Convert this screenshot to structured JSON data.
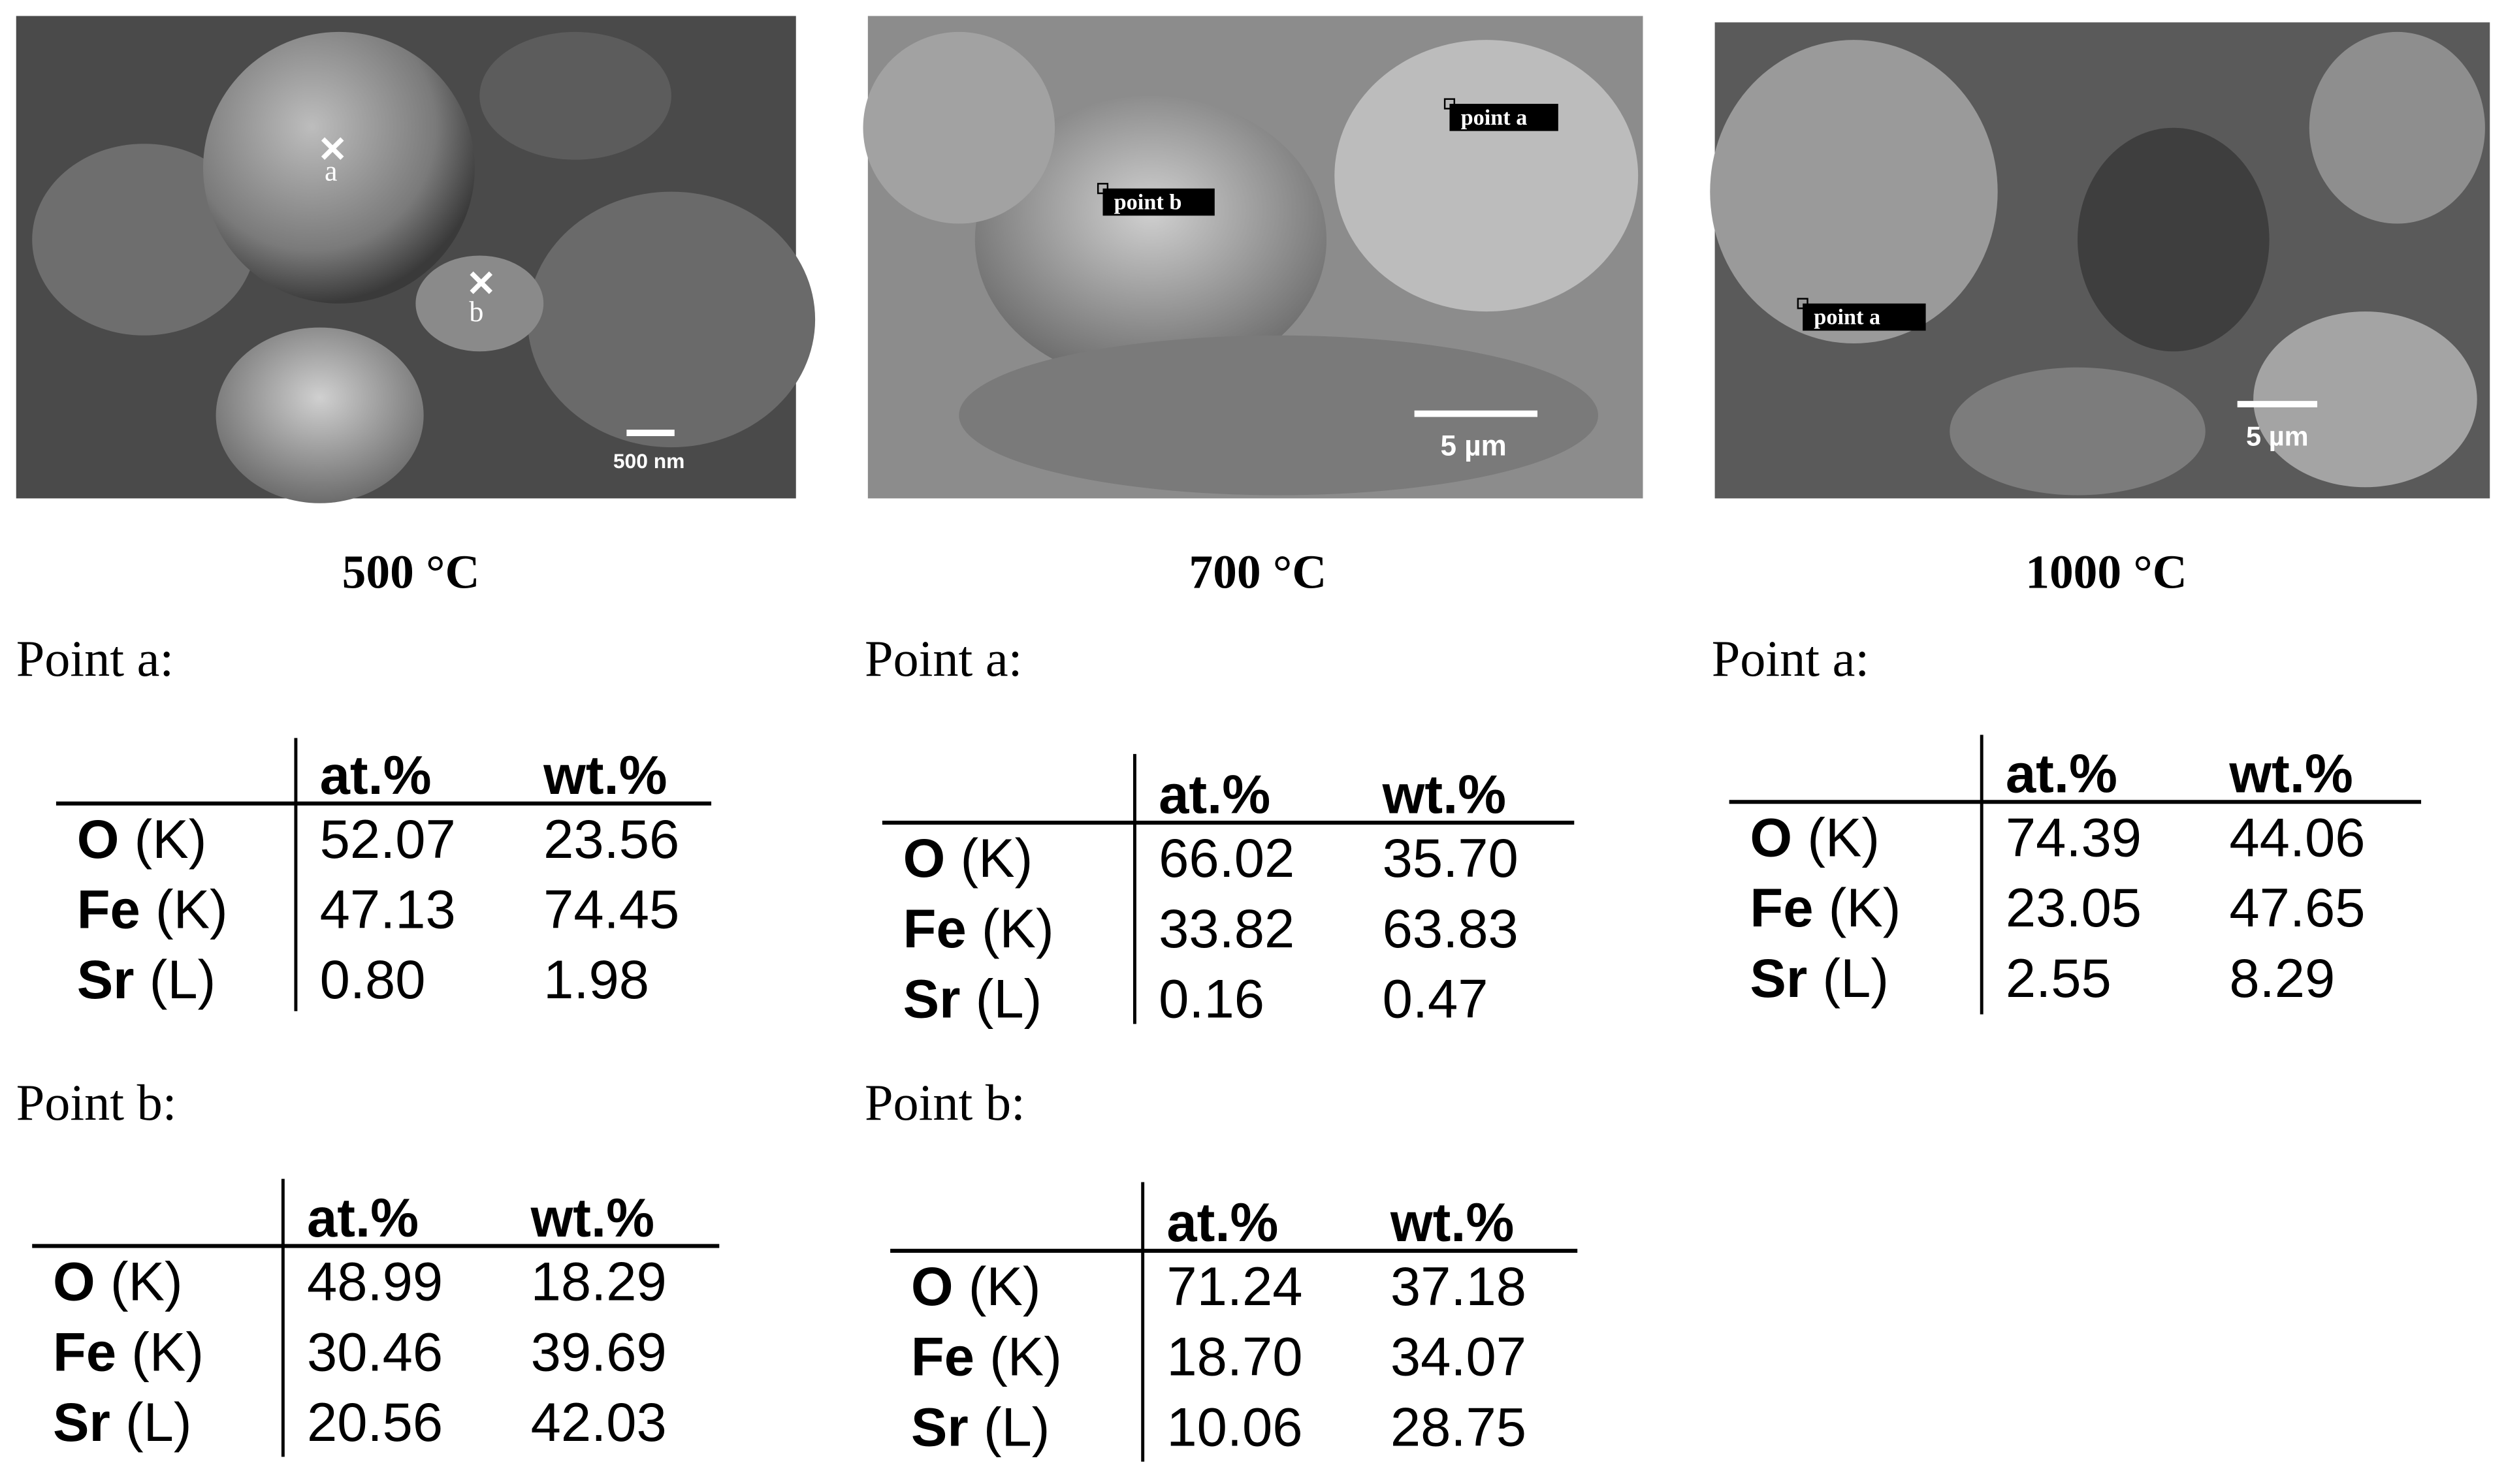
{
  "panels": [
    {
      "temperature": "500 °C",
      "image": {
        "scale_bar": "500 nm",
        "markers": [
          "a",
          "b"
        ]
      },
      "points": [
        {
          "label": "Point a:",
          "table": {
            "columns": [
              "at.%",
              "wt.%"
            ],
            "rows": [
              {
                "element": "O",
                "line": "(K)",
                "values": [
                  "52.07",
                  "23.56"
                ]
              },
              {
                "element": "Fe",
                "line": "(K)",
                "values": [
                  "47.13",
                  "74.45"
                ]
              },
              {
                "element": "Sr",
                "line": "(L)",
                "values": [
                  "0.80",
                  "1.98"
                ]
              }
            ]
          }
        },
        {
          "label": "Point b:",
          "table": {
            "columns": [
              "at.%",
              "wt.%"
            ],
            "rows": [
              {
                "element": "O",
                "line": "(K)",
                "values": [
                  "48.99",
                  "18.29"
                ]
              },
              {
                "element": "Fe",
                "line": "(K)",
                "values": [
                  "30.46",
                  "39.69"
                ]
              },
              {
                "element": "Sr",
                "line": "(L)",
                "values": [
                  "20.56",
                  "42.03"
                ]
              }
            ]
          }
        }
      ]
    },
    {
      "temperature": "700 °C",
      "image": {
        "scale_bar": "5 µm",
        "markers": [
          "point a",
          "point b"
        ]
      },
      "points": [
        {
          "label": "Point a:",
          "table": {
            "columns": [
              "at.%",
              "wt.%"
            ],
            "rows": [
              {
                "element": "O",
                "line": "(K)",
                "values": [
                  "66.02",
                  "35.70"
                ]
              },
              {
                "element": "Fe",
                "line": "(K)",
                "values": [
                  "33.82",
                  "63.83"
                ]
              },
              {
                "element": "Sr",
                "line": "(L)",
                "values": [
                  "0.16",
                  "0.47"
                ]
              }
            ]
          }
        },
        {
          "label": "Point b:",
          "table": {
            "columns": [
              "at.%",
              "wt.%"
            ],
            "rows": [
              {
                "element": "O",
                "line": "(K)",
                "values": [
                  "71.24",
                  "37.18"
                ]
              },
              {
                "element": "Fe",
                "line": "(K)",
                "values": [
                  "18.70",
                  "34.07"
                ]
              },
              {
                "element": "Sr",
                "line": "(L)",
                "values": [
                  "10.06",
                  "28.75"
                ]
              }
            ]
          }
        }
      ]
    },
    {
      "temperature": "1000 °C",
      "image": {
        "scale_bar": "5 µm",
        "markers": [
          "point a"
        ]
      },
      "points": [
        {
          "label": "Point a:",
          "table": {
            "columns": [
              "at.%",
              "wt.%"
            ],
            "rows": [
              {
                "element": "O",
                "line": "(K)",
                "values": [
                  "74.39",
                  "44.06"
                ]
              },
              {
                "element": "Fe",
                "line": "(K)",
                "values": [
                  "23.05",
                  "47.65"
                ]
              },
              {
                "element": "Sr",
                "line": "(L)",
                "values": [
                  "2.55",
                  "8.29"
                ]
              }
            ]
          }
        }
      ]
    }
  ]
}
